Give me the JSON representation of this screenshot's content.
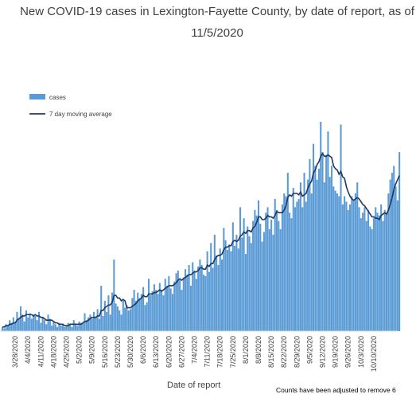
{
  "chart_data": {
    "type": "bar",
    "title": "New COVID-19 cases in Lexington-Fayette County, by date of report, as of",
    "subtitle": "11/5/2020",
    "xlabel": "Date of report",
    "ylabel": "",
    "footnote": "Counts have been adjusted to remove 6",
    "legend": {
      "placement": "top-left",
      "entries": [
        "cases",
        "7 day moving average"
      ]
    },
    "x_tick_labels": [
      "3/28/2020",
      "4/4/2020",
      "4/11/2020",
      "4/18/2020",
      "4/25/2020",
      "5/2/2020",
      "5/9/2020",
      "5/16/2020",
      "5/23/2020",
      "5/30/2020",
      "6/6/2020",
      "6/13/2020",
      "6/20/2020",
      "6/27/2020",
      "7/4/2020",
      "7/11/2020",
      "7/18/2020",
      "7/25/2020",
      "8/1/2020",
      "8/8/2020",
      "8/15/2020",
      "8/22/2020",
      "8/29/2020",
      "9/5/2020",
      "9/12/2020",
      "9/19/2020",
      "9/26/2020",
      "10/3/2020",
      "10/10/2020"
    ],
    "grid": false,
    "start_date": "2020-03-21",
    "series": [
      {
        "name": "cases",
        "color": "#5b9bd5",
        "values": [
          3,
          2,
          5,
          4,
          8,
          6,
          10,
          6,
          14,
          9,
          18,
          12,
          7,
          15,
          10,
          13,
          9,
          12,
          11,
          8,
          14,
          6,
          10,
          8,
          5,
          12,
          9,
          4,
          7,
          5,
          3,
          6,
          4,
          5,
          3,
          4,
          6,
          5,
          3,
          8,
          5,
          4,
          7,
          6,
          6,
          13,
          8,
          10,
          12,
          9,
          14,
          10,
          16,
          9,
          33,
          11,
          22,
          14,
          26,
          12,
          28,
          52,
          20,
          18,
          15,
          12,
          22,
          17,
          19,
          15,
          16,
          24,
          30,
          22,
          28,
          24,
          27,
          32,
          19,
          21,
          38,
          26,
          29,
          34,
          30,
          27,
          35,
          30,
          26,
          38,
          33,
          40,
          31,
          27,
          36,
          42,
          44,
          37,
          30,
          39,
          45,
          41,
          48,
          33,
          50,
          44,
          38,
          47,
          52,
          48,
          41,
          40,
          58,
          43,
          64,
          46,
          70,
          55,
          48,
          60,
          52,
          75,
          66,
          59,
          63,
          58,
          79,
          62,
          70,
          60,
          90,
          68,
          82,
          56,
          76,
          69,
          64,
          80,
          88,
          84,
          95,
          78,
          65,
          72,
          86,
          90,
          74,
          81,
          70,
          96,
          88,
          80,
          74,
          92,
          100,
          98,
          115,
          86,
          82,
          104,
          90,
          94,
          96,
          108,
          90,
          115,
          94,
          110,
          125,
          100,
          136,
          120,
          110,
          118,
          152,
          130,
          108,
          128,
          145,
          112,
          120,
          105,
          102,
          100,
          98,
          150,
          92,
          98,
          94,
          88,
          92,
          98,
          95,
          100,
          108,
          90,
          82,
          86,
          90,
          80,
          88,
          76,
          74,
          82,
          90,
          86,
          84,
          92,
          80,
          88,
          86,
          100,
          110,
          115,
          120,
          105,
          95,
          130
        ],
        "note": "Daily counts; y axis unlabeled in view"
      },
      {
        "name": "7 day moving average",
        "color": "#1f3864",
        "values": [
          3,
          3,
          4,
          4,
          5,
          5,
          6,
          6,
          8,
          9,
          10,
          11,
          11,
          12,
          12,
          12,
          12,
          11,
          12,
          11,
          11,
          10,
          10,
          9,
          8,
          8,
          8,
          8,
          7,
          6,
          6,
          5,
          5,
          5,
          4,
          4,
          4,
          5,
          5,
          5,
          5,
          5,
          5,
          5,
          6,
          7,
          7,
          8,
          9,
          10,
          10,
          10,
          11,
          11,
          15,
          15,
          17,
          18,
          19,
          19,
          21,
          26,
          26,
          24,
          24,
          22,
          23,
          22,
          17,
          17,
          17,
          18,
          19,
          20,
          22,
          23,
          24,
          26,
          25,
          25,
          27,
          27,
          27,
          28,
          28,
          29,
          30,
          29,
          30,
          31,
          32,
          33,
          33,
          33,
          34,
          35,
          37,
          38,
          37,
          38,
          39,
          40,
          41,
          41,
          42,
          43,
          43,
          44,
          46,
          46,
          45,
          45,
          48,
          47,
          49,
          49,
          52,
          54,
          55,
          55,
          56,
          59,
          61,
          61,
          62,
          62,
          65,
          66,
          65,
          66,
          69,
          70,
          72,
          71,
          73,
          73,
          72,
          75,
          76,
          79,
          83,
          83,
          81,
          81,
          82,
          84,
          83,
          83,
          82,
          84,
          87,
          86,
          86,
          86,
          88,
          91,
          97,
          99,
          98,
          100,
          100,
          100,
          99,
          101,
          98,
          99,
          100,
          104,
          107,
          109,
          115,
          117,
          121,
          123,
          127,
          129,
          127,
          127,
          128,
          127,
          126,
          120,
          118,
          117,
          114,
          116,
          112,
          111,
          105,
          101,
          98,
          96,
          95,
          96,
          97,
          96,
          94,
          92,
          91,
          89,
          87,
          85,
          83,
          83,
          82,
          82,
          81,
          84,
          85,
          86,
          85,
          88,
          92,
          97,
          103,
          107,
          110,
          113
        ],
        "note": "Smoothed trend line"
      }
    ]
  }
}
